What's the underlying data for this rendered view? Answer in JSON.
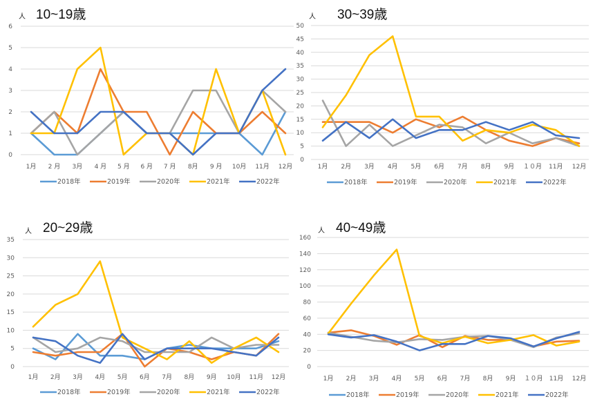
{
  "chart_data": [
    {
      "type": "line",
      "title": "10~19歳",
      "unit_label": "人",
      "xlabel": "",
      "ylabel": "人",
      "ylim": [
        0,
        6
      ],
      "ytick_step": 1,
      "grid": true,
      "legend": "bottom",
      "categories": [
        "1月",
        "2 月",
        "3月",
        "4 月",
        "5 月",
        "6 月",
        "7 月",
        "8月",
        "9 月",
        "10月",
        "11月",
        "12月"
      ],
      "series": [
        {
          "name": "2018年",
          "color": "#5b9bd5",
          "values": [
            1,
            0,
            0,
            1,
            2,
            1,
            1,
            1,
            1,
            1,
            0,
            2
          ]
        },
        {
          "name": "2019年",
          "color": "#ed7d31",
          "values": [
            1,
            2,
            1,
            4,
            2,
            2,
            0,
            2,
            1,
            1,
            2,
            1
          ]
        },
        {
          "name": "2020年",
          "color": "#a5a5a5",
          "values": [
            1,
            2,
            0,
            1,
            2,
            1,
            1,
            3,
            3,
            1,
            3,
            2
          ]
        },
        {
          "name": "2021年",
          "color": "#ffc000",
          "values": [
            1,
            1,
            4,
            5,
            0,
            1,
            1,
            0,
            4,
            1,
            3,
            0
          ]
        },
        {
          "name": "2022年",
          "color": "#4472c4",
          "values": [
            2,
            1,
            1,
            2,
            2,
            1,
            1,
            0,
            1,
            1,
            3,
            4
          ]
        }
      ]
    },
    {
      "type": "line",
      "title": "30~39歳",
      "unit_label": "人",
      "xlabel": "",
      "ylabel": "人",
      "ylim": [
        0,
        50
      ],
      "ytick_step": 5,
      "grid": true,
      "legend": "bottom",
      "categories": [
        "1月",
        "2月",
        "3月",
        "4月",
        "5月",
        "6月",
        "7月",
        "8月",
        "9月",
        "１０月",
        "11月",
        "12月"
      ],
      "series": [
        {
          "name": "2018年",
          "color": "#5b9bd5",
          "values": []
        },
        {
          "name": "2019年",
          "color": "#ed7d31",
          "values": [
            14,
            14,
            14,
            10,
            15,
            12,
            16,
            11,
            7,
            5,
            8,
            6
          ]
        },
        {
          "name": "2020年",
          "color": "#a5a5a5",
          "values": [
            22,
            5,
            13,
            5,
            9,
            13,
            12,
            6,
            10,
            6,
            8,
            5
          ]
        },
        {
          "name": "2021年",
          "color": "#ffc000",
          "values": [
            12,
            24,
            39,
            46,
            16,
            16,
            7,
            11,
            10,
            13,
            11,
            5
          ]
        },
        {
          "name": "2022年",
          "color": "#4472c4",
          "values": [
            7,
            14,
            8,
            15,
            8,
            11,
            11,
            14,
            11,
            14,
            9,
            8
          ]
        }
      ]
    },
    {
      "type": "line",
      "title": "20~29歳",
      "unit_label": "人",
      "xlabel": "",
      "ylabel": "人",
      "ylim": [
        0,
        35
      ],
      "ytick_step": 5,
      "grid": true,
      "legend": "bottom",
      "categories": [
        "1月",
        "2月",
        "3月",
        "4月",
        "5月",
        "6月",
        "7月",
        "8月",
        "9月",
        "10月",
        "11月",
        "12月"
      ],
      "series": [
        {
          "name": "2018年",
          "color": "#5b9bd5",
          "values": [
            5,
            2,
            9,
            3,
            3,
            2,
            5,
            6,
            5,
            5,
            5,
            7
          ]
        },
        {
          "name": "2019年",
          "color": "#ed7d31",
          "values": [
            4,
            3,
            4,
            4,
            9,
            0,
            5,
            4,
            2,
            4,
            3,
            9
          ]
        },
        {
          "name": "2020年",
          "color": "#a5a5a5",
          "values": [
            8,
            4,
            5,
            8,
            7,
            4,
            4,
            4,
            8,
            5,
            6,
            6
          ]
        },
        {
          "name": "2021年",
          "color": "#ffc000",
          "values": [
            11,
            17,
            20,
            29,
            8,
            5,
            2,
            7,
            1,
            5,
            8,
            4
          ]
        },
        {
          "name": "2022年",
          "color": "#4472c4",
          "values": [
            8,
            7,
            3,
            1,
            9,
            2,
            5,
            5,
            5,
            4,
            3,
            8
          ]
        }
      ]
    },
    {
      "type": "line",
      "title": "40~49歳",
      "unit_label": "人",
      "xlabel": "",
      "ylabel": "人",
      "ylim": [
        0,
        160
      ],
      "ytick_step": 20,
      "grid": true,
      "legend": "bottom",
      "categories": [
        "1月",
        "2月",
        "3月",
        "4月",
        "5月",
        "6月",
        "7月",
        "8月",
        "9月",
        "１０月",
        "11月",
        "12月"
      ],
      "series": [
        {
          "name": "2018年",
          "color": "#5b9bd5",
          "values": []
        },
        {
          "name": "2019年",
          "color": "#ed7d31",
          "values": [
            42,
            45,
            38,
            27,
            39,
            24,
            38,
            33,
            33,
            25,
            31,
            32
          ]
        },
        {
          "name": "2020年",
          "color": "#a5a5a5",
          "values": [
            42,
            37,
            32,
            30,
            34,
            33,
            37,
            38,
            33,
            24,
            36,
            41
          ]
        },
        {
          "name": "2021年",
          "color": "#ffc000",
          "values": [
            41,
            78,
            113,
            145,
            38,
            29,
            37,
            29,
            33,
            39,
            26,
            31
          ]
        },
        {
          "name": "2022年",
          "color": "#4472c4",
          "values": [
            40,
            36,
            39,
            31,
            20,
            28,
            28,
            38,
            35,
            25,
            35,
            43
          ]
        }
      ]
    }
  ]
}
